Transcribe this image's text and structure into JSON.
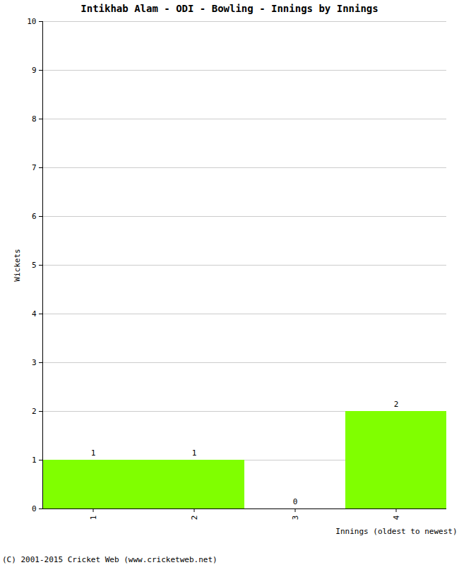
{
  "chart_data": {
    "type": "bar",
    "title": "Intikhab Alam - ODI - Bowling - Innings by Innings",
    "x_label": "Innings (oldest to newest)",
    "y_label": "Wickets",
    "categories": [
      "1",
      "2",
      "3",
      "4"
    ],
    "values": [
      1,
      1,
      0,
      2
    ],
    "color": "#80ff00",
    "ylim": [
      0,
      10
    ],
    "yticks": [
      0,
      1,
      2,
      3,
      4,
      5,
      6,
      7,
      8,
      9,
      10
    ],
    "grid": true,
    "data_labels": true,
    "caption": "(C) 2001-2015 Cricket Web (www.cricketweb.net)"
  }
}
